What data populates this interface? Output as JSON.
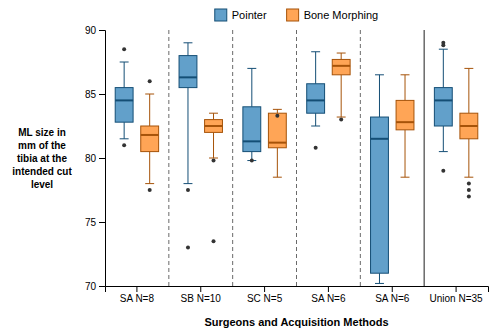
{
  "chart_data": {
    "type": "box",
    "xlabel": "Surgeons and Acquisition Methods",
    "ylabel": "ML size in\nmm of the\ntibia at the\nintended cut\nlevel",
    "categories": [
      "SA N=8",
      "SB N=10",
      "SC N=5",
      "SA N=6",
      "SA N=6",
      "Union N=35"
    ],
    "ylim": [
      70,
      90
    ],
    "yticks": [
      70,
      75,
      80,
      85,
      90
    ],
    "legend": "top",
    "series": [
      {
        "name": "Pointer",
        "values": [
          {
            "whislo": 81.5,
            "q1": 82.8,
            "med": 84.5,
            "q3": 85.5,
            "whishi": 87.5,
            "fliers": [
              88.5,
              81.0
            ]
          },
          {
            "whislo": 78.0,
            "q1": 85.5,
            "med": 86.3,
            "q3": 88.0,
            "whishi": 89.0,
            "fliers": [
              77.5,
              73.0
            ]
          },
          {
            "whislo": 79.8,
            "q1": 80.5,
            "med": 81.3,
            "q3": 84.0,
            "whishi": 87.0,
            "fliers": [
              79.8
            ]
          },
          {
            "whislo": 82.5,
            "q1": 83.5,
            "med": 84.5,
            "q3": 85.8,
            "whishi": 88.3,
            "fliers": [
              80.8
            ]
          },
          {
            "whislo": 70.2,
            "q1": 71.0,
            "med": 81.5,
            "q3": 83.2,
            "whishi": 86.5,
            "fliers": []
          },
          {
            "whislo": 80.5,
            "q1": 82.5,
            "med": 84.5,
            "q3": 85.5,
            "whishi": 88.5,
            "fliers": [
              79.0,
              88.8,
              89.0
            ]
          }
        ]
      },
      {
        "name": "Bone Morphing",
        "values": [
          {
            "whislo": 78.0,
            "q1": 80.5,
            "med": 81.8,
            "q3": 82.5,
            "whishi": 85.0,
            "fliers": [
              86.0,
              77.5
            ]
          },
          {
            "whislo": 80.0,
            "q1": 82.0,
            "med": 82.5,
            "q3": 83.0,
            "whishi": 83.5,
            "fliers": [
              79.8,
              73.5
            ]
          },
          {
            "whislo": 78.5,
            "q1": 80.8,
            "med": 81.2,
            "q3": 83.5,
            "whishi": 83.8,
            "fliers": [
              83.3
            ]
          },
          {
            "whislo": 83.2,
            "q1": 86.5,
            "med": 87.2,
            "q3": 87.7,
            "whishi": 88.2,
            "fliers": [
              83.0
            ]
          },
          {
            "whislo": 78.5,
            "q1": 82.2,
            "med": 82.8,
            "q3": 84.5,
            "whishi": 86.5,
            "fliers": []
          },
          {
            "whislo": 78.5,
            "q1": 81.5,
            "med": 82.5,
            "q3": 83.5,
            "whishi": 87.0,
            "fliers": [
              78.0,
              77.5,
              77.0
            ]
          }
        ]
      }
    ]
  }
}
